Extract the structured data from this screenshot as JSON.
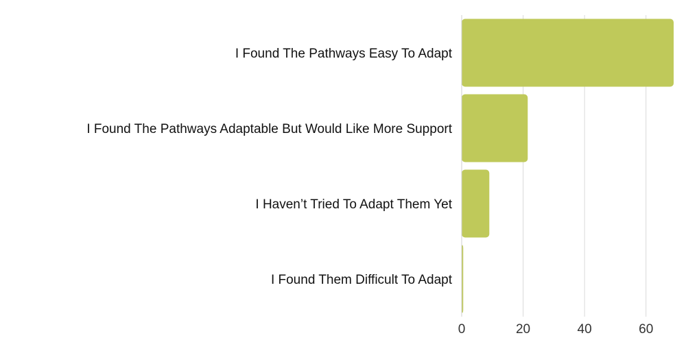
{
  "chart_data": {
    "type": "bar",
    "orientation": "horizontal",
    "categories": [
      "I Found The Pathways Easy To Adapt",
      "I Found The Pathways Adaptable But Would Like More Support",
      "I Haven’t Tried To Adapt Them Yet",
      "I Found Them Difficult To Adapt"
    ],
    "values": [
      69,
      21.5,
      9,
      0.5
    ],
    "xlim": [
      0,
      69
    ],
    "xticks": [
      0,
      20,
      40,
      60
    ],
    "grid": true,
    "bar_color": "#bfc95a",
    "title": "",
    "xlabel": "",
    "ylabel": ""
  }
}
